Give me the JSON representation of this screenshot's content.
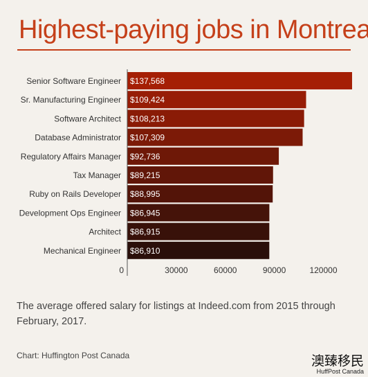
{
  "header": {
    "title": "Highest-paying jobs in Montreal"
  },
  "caption": "The average offered salary for listings at Indeed.com from 2015 through February, 2017.",
  "source": "Chart: Huffington Post Canada",
  "watermark": {
    "text": "澳臻移民",
    "subtext": "HuffPost Canada"
  },
  "colors": {
    "accent": "#c5401a",
    "bar_top": "#a51f05",
    "bar_bottom": "#2a0f0a",
    "background": "#f4f1ec"
  },
  "chart_data": {
    "type": "bar",
    "orientation": "horizontal",
    "categories": [
      "Senior Software Engineer",
      "Sr. Manufacturing Engineer",
      "Software Architect",
      "Database Administrator",
      "Regulatory Affairs Manager",
      "Tax Manager",
      "Ruby on Rails Developer",
      "Development Ops Engineer",
      "Architect",
      "Mechanical Engineer"
    ],
    "values": [
      137568,
      109424,
      108213,
      107309,
      92736,
      89215,
      88995,
      86945,
      86915,
      86910
    ],
    "data_labels": [
      "$137,568",
      "$109,424",
      "$108,213",
      "$107,309",
      "$92,736",
      "$89,215",
      "$88,995",
      "$86,945",
      "$86,915",
      "$86,910"
    ],
    "xticks": [
      0,
      30000,
      60000,
      90000,
      120000
    ],
    "xtick_labels": [
      "0",
      "30000",
      "60000",
      "90000",
      "120000"
    ],
    "xlim": [
      0,
      138000
    ],
    "grid": false,
    "title": "Highest-paying jobs in Montreal"
  }
}
